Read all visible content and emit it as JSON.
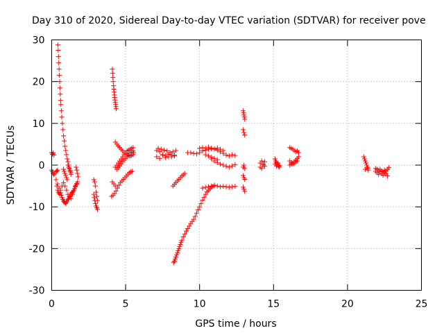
{
  "chart_data": {
    "type": "scatter",
    "title": "Day 310 of 2020, Sidereal Day-to-day VTEC variation (SDTVAR) for receiver pove",
    "xlabel": "GPS time / hours",
    "ylabel": "SDTVAR / TECUs",
    "xlim": [
      0,
      25
    ],
    "ylim": [
      -30,
      30
    ],
    "xticks": [
      "0",
      "5",
      "10",
      "15",
      "20",
      "25"
    ],
    "yticks": [
      "30",
      "20",
      "10",
      "0",
      "-10",
      "-20",
      "-30"
    ],
    "xtick_values": [
      0,
      5,
      10,
      15,
      20,
      25
    ],
    "ytick_values": [
      30,
      20,
      10,
      0,
      -10,
      -20,
      -30
    ],
    "grid": true,
    "marker": "+",
    "color": "#ff0000",
    "series": [
      {
        "name": "SDTVAR",
        "segments": [
          {
            "x": [
              0.0,
              0.05,
              0.1,
              0.15
            ],
            "y": [
              3.0,
              2.6,
              2.9,
              2.4
            ]
          },
          {
            "x": [
              0.0,
              0.05,
              0.1,
              0.15,
              0.2,
              0.3,
              0.35,
              0.4
            ],
            "y": [
              -1.2,
              -1.6,
              -2.0,
              -2.3,
              -2.0,
              -1.6,
              -1.4,
              -1.2
            ]
          },
          {
            "x": [
              0.42,
              0.44,
              0.46,
              0.48,
              0.5,
              0.52,
              0.54,
              0.56,
              0.58,
              0.6,
              0.62,
              0.65,
              0.68,
              0.72,
              0.76,
              0.8,
              0.85,
              0.9,
              0.95,
              1.0,
              1.05,
              1.1,
              1.15,
              1.2,
              1.25,
              1.3
            ],
            "y": [
              28.8,
              27.5,
              26.0,
              24.5,
              23.0,
              21.5,
              20.0,
              18.5,
              17.0,
              15.5,
              14.5,
              13.0,
              11.5,
              10.0,
              8.5,
              7.0,
              5.8,
              4.5,
              3.5,
              2.5,
              1.5,
              0.8,
              0.0,
              -0.8,
              -1.5,
              -2.2
            ]
          },
          {
            "x": [
              0.35,
              0.4,
              0.45,
              0.5,
              0.55,
              0.6,
              0.65,
              0.7,
              0.75,
              0.8,
              0.85,
              0.9,
              0.95,
              1.0,
              1.05,
              1.1,
              1.15,
              1.2,
              1.25,
              1.3,
              1.35,
              1.4,
              1.45,
              1.5,
              1.55,
              1.6,
              1.65,
              1.7,
              1.75
            ],
            "y": [
              -5.0,
              -6.0,
              -6.5,
              -6.8,
              -7.0,
              -6.6,
              -7.2,
              -7.8,
              -8.2,
              -8.6,
              -8.8,
              -9.0,
              -9.2,
              -8.9,
              -8.6,
              -8.2,
              -8.0,
              -7.6,
              -7.4,
              -7.0,
              -6.7,
              -6.5,
              -6.3,
              -6.0,
              -5.6,
              -5.2,
              -4.8,
              -4.4,
              -4.0
            ]
          },
          {
            "x": [
              0.3,
              0.4,
              0.5,
              0.6,
              0.7,
              0.8,
              0.9,
              1.0,
              1.1,
              1.2,
              1.3,
              1.4,
              1.5,
              1.6,
              1.7
            ],
            "y": [
              -3.5,
              -4.5,
              -5.5,
              -6.0,
              -5.0,
              -4.2,
              -5.0,
              -6.0,
              -7.0,
              -7.5,
              -8.0,
              -7.0,
              -6.0,
              -5.0,
              -4.5
            ]
          },
          {
            "x": [
              0.8,
              0.85,
              0.9,
              0.95,
              1.0,
              1.05
            ],
            "y": [
              -1.0,
              -1.5,
              -2.0,
              -2.5,
              -3.0,
              -3.5
            ]
          },
          {
            "x": [
              1.1,
              1.15,
              1.2,
              1.25,
              1.3
            ],
            "y": [
              0.0,
              -0.5,
              -0.9,
              -1.3,
              -1.8
            ]
          },
          {
            "x": [
              1.65,
              1.7,
              1.75,
              1.78
            ],
            "y": [
              -0.5,
              -1.2,
              -2.0,
              -2.8
            ]
          },
          {
            "x": [
              2.85,
              2.9,
              2.95,
              3.0,
              3.05,
              3.1
            ],
            "y": [
              -3.5,
              -4.0,
              -5.0,
              -6.5,
              -7.5,
              -8.5
            ]
          },
          {
            "x": [
              2.85,
              2.88,
              2.92,
              2.96,
              3.0,
              3.05,
              3.1
            ],
            "y": [
              -7.0,
              -7.8,
              -8.5,
              -9.2,
              -9.8,
              -10.2,
              -10.6
            ]
          },
          {
            "x": [
              4.1,
              4.12,
              4.14,
              4.16,
              4.18,
              4.2,
              4.22,
              4.24,
              4.26,
              4.28,
              4.3,
              4.32,
              4.34,
              4.36
            ],
            "y": [
              23.0,
              22.0,
              21.0,
              20.0,
              19.0,
              18.2,
              17.5,
              16.8,
              16.2,
              15.6,
              15.0,
              14.5,
              14.0,
              13.5
            ]
          },
          {
            "x": [
              4.05,
              4.15,
              4.25,
              4.35,
              4.45,
              4.55,
              4.65,
              4.75,
              4.85,
              4.95,
              5.05,
              5.15,
              5.25,
              5.35,
              5.45
            ],
            "y": [
              -7.5,
              -7.2,
              -6.8,
              -6.2,
              -5.5,
              -4.8,
              -4.2,
              -3.8,
              -3.4,
              -3.0,
              -2.6,
              -2.2,
              -1.8,
              -1.6,
              -1.5
            ]
          },
          {
            "x": [
              4.1,
              4.2,
              4.3
            ],
            "y": [
              -4.0,
              -4.5,
              -5.0
            ]
          },
          {
            "x": [
              4.3,
              4.4,
              4.5,
              4.6,
              4.7,
              4.8,
              4.9,
              5.0,
              5.1,
              5.2,
              5.3,
              5.4,
              5.5,
              5.55
            ],
            "y": [
              5.5,
              5.0,
              4.6,
              4.2,
              3.8,
              3.4,
              3.0,
              2.7,
              2.5,
              2.3,
              2.2,
              2.3,
              2.5,
              3.0
            ]
          },
          {
            "x": [
              4.3,
              4.4,
              4.5,
              4.6,
              4.7,
              4.8,
              4.9,
              5.0,
              5.1,
              5.2,
              5.3,
              5.4,
              5.5
            ],
            "y": [
              -0.5,
              0.0,
              0.5,
              1.0,
              1.5,
              2.0,
              2.5,
              3.0,
              3.4,
              3.6,
              3.8,
              4.0,
              4.2
            ]
          },
          {
            "x": [
              4.4,
              4.5,
              4.6,
              4.7,
              4.8,
              4.9,
              5.0,
              5.1,
              5.2,
              5.3,
              5.4,
              5.5
            ],
            "y": [
              -1.0,
              -0.6,
              -0.2,
              0.3,
              0.8,
              1.2,
              1.6,
              2.0,
              2.4,
              2.8,
              3.1,
              3.4
            ]
          },
          {
            "x": [
              7.1,
              7.2,
              7.3,
              7.4,
              7.5,
              7.6,
              7.7,
              7.8,
              7.9,
              8.0,
              8.1,
              8.2,
              8.3,
              8.4
            ],
            "y": [
              3.5,
              4.0,
              3.2,
              3.8,
              2.5,
              3.6,
              2.2,
              3.4,
              2.0,
              3.0,
              2.4,
              3.2,
              2.2,
              3.5
            ]
          },
          {
            "x": [
              7.1,
              7.3,
              7.5,
              7.7,
              7.9,
              8.1,
              8.3
            ],
            "y": [
              2.0,
              1.6,
              2.4,
              1.8,
              2.6,
              2.0,
              2.4
            ]
          },
          {
            "x": [
              8.2,
              8.3,
              8.4,
              8.5,
              8.6,
              8.7,
              8.8,
              8.9,
              9.0
            ],
            "y": [
              -5.0,
              -4.6,
              -4.2,
              -3.8,
              -3.4,
              -3.0,
              -2.6,
              -2.3,
              -2.0
            ]
          },
          {
            "x": [
              8.25,
              8.3,
              8.35,
              8.4,
              8.45,
              8.5,
              8.55,
              8.6,
              8.65,
              8.7,
              8.75,
              8.8,
              8.9,
              9.0,
              9.1,
              9.2,
              9.3,
              9.4,
              9.5,
              9.6,
              9.7,
              9.8,
              9.9,
              10.0,
              10.1,
              10.2,
              10.3,
              10.4,
              10.5,
              10.6,
              10.7,
              10.8,
              10.9,
              11.0
            ],
            "y": [
              -23.3,
              -23.0,
              -22.5,
              -22.0,
              -21.5,
              -21.0,
              -20.5,
              -20.0,
              -19.5,
              -19.0,
              -18.5,
              -18.0,
              -17.2,
              -16.5,
              -15.8,
              -15.2,
              -14.6,
              -14.0,
              -13.5,
              -13.0,
              -12.3,
              -11.5,
              -10.7,
              -10.0,
              -9.2,
              -8.4,
              -7.7,
              -7.0,
              -6.4,
              -6.0,
              -5.6,
              -5.3,
              -5.1,
              -5.0
            ]
          },
          {
            "x": [
              10.2,
              10.4,
              10.6,
              10.8,
              11.0,
              11.2,
              11.4,
              11.6,
              11.8,
              12.0,
              12.2,
              12.4
            ],
            "y": [
              -5.5,
              -5.3,
              -5.2,
              -5.0,
              -4.8,
              -5.0,
              -5.2,
              -5.1,
              -5.2,
              -5.3,
              -5.2,
              -5.1
            ]
          },
          {
            "x": [
              9.2,
              9.4,
              9.6,
              9.8,
              10.0,
              10.2,
              10.4,
              10.6,
              10.8,
              11.0,
              11.2,
              11.4,
              11.6,
              11.8,
              12.0,
              12.2,
              12.4
            ],
            "y": [
              3.0,
              3.0,
              2.8,
              2.7,
              3.0,
              3.4,
              3.6,
              3.8,
              3.9,
              3.8,
              3.6,
              3.2,
              2.8,
              2.4,
              2.2,
              2.5,
              2.3
            ]
          },
          {
            "x": [
              10.0,
              10.2,
              10.4,
              10.6,
              10.8,
              11.0,
              11.2,
              11.4,
              11.6
            ],
            "y": [
              4.0,
              4.2,
              4.0,
              4.3,
              4.1,
              3.9,
              4.1,
              3.8,
              3.5
            ]
          },
          {
            "x": [
              10.8,
              11.0,
              11.2,
              11.4,
              11.6,
              11.8,
              12.0,
              12.2,
              12.4
            ],
            "y": [
              1.5,
              1.0,
              0.6,
              0.2,
              0.0,
              -0.3,
              -0.5,
              -0.2,
              0.1
            ]
          },
          {
            "x": [
              10.4,
              10.6,
              10.8,
              11.0,
              11.2
            ],
            "y": [
              2.5,
              2.2,
              1.9,
              1.6,
              1.3
            ]
          },
          {
            "x": [
              12.95,
              12.98,
              13.0,
              13.02,
              13.05
            ],
            "y": [
              13.0,
              12.5,
              12.0,
              11.5,
              11.0
            ]
          },
          {
            "x": [
              12.95,
              13.0,
              13.05
            ],
            "y": [
              8.5,
              7.8,
              7.2
            ]
          },
          {
            "x": [
              12.95,
              13.0,
              13.05
            ],
            "y": [
              -0.5,
              0.0,
              -0.8
            ]
          },
          {
            "x": [
              12.95,
              13.0,
              13.05
            ],
            "y": [
              -2.5,
              -3.0,
              -3.4
            ]
          },
          {
            "x": [
              12.95,
              13.0,
              13.05
            ],
            "y": [
              -5.3,
              -5.8,
              -6.3
            ]
          },
          {
            "x": [
              14.1,
              14.2,
              14.3,
              14.4,
              14.1,
              14.2,
              14.3,
              14.4
            ],
            "y": [
              0.5,
              1.0,
              0.2,
              0.8,
              -0.5,
              -0.8,
              0.0,
              -0.3
            ]
          },
          {
            "x": [
              15.1,
              15.15,
              15.2,
              15.25,
              15.3,
              15.35,
              15.4,
              15.1,
              15.2,
              15.3,
              15.4
            ],
            "y": [
              1.5,
              1.0,
              0.6,
              0.2,
              0.0,
              -0.3,
              -0.5,
              0.3,
              -0.2,
              0.5,
              -0.1
            ]
          },
          {
            "x": [
              16.1,
              16.2,
              16.3,
              16.4,
              16.5,
              16.6,
              16.7
            ],
            "y": [
              4.2,
              4.0,
              3.8,
              3.5,
              3.2,
              3.4,
              3.0
            ]
          },
          {
            "x": [
              16.1,
              16.2,
              16.3,
              16.4,
              16.5,
              16.6,
              16.7
            ],
            "y": [
              0.0,
              0.2,
              0.5,
              0.8,
              1.2,
              1.6,
              2.0
            ]
          },
          {
            "x": [
              16.1,
              16.2,
              16.3,
              16.4,
              16.5,
              16.6
            ],
            "y": [
              1.0,
              0.6,
              0.3,
              0.5,
              0.8,
              1.0
            ]
          },
          {
            "x": [
              21.1,
              21.15,
              21.2,
              21.25,
              21.3,
              21.35,
              21.4
            ],
            "y": [
              2.0,
              1.5,
              1.0,
              0.5,
              0.0,
              -0.5,
              -0.8
            ]
          },
          {
            "x": [
              21.2,
              21.3,
              21.4
            ],
            "y": [
              -1.0,
              -0.5,
              -1.2
            ]
          },
          {
            "x": [
              21.9,
              22.0,
              22.1,
              22.2,
              22.3,
              22.4,
              22.5,
              22.6,
              22.7,
              22.8
            ],
            "y": [
              -1.5,
              -1.8,
              -2.2,
              -1.6,
              -2.0,
              -2.4,
              -1.8,
              -1.4,
              -1.0,
              -0.6
            ]
          },
          {
            "x": [
              21.9,
              22.0,
              22.1,
              22.2,
              22.3,
              22.4,
              22.5,
              22.6,
              22.7
            ],
            "y": [
              -0.8,
              -1.0,
              -1.2,
              -1.0,
              -1.4,
              -1.6,
              -1.2,
              -2.0,
              -2.6
            ]
          }
        ]
      }
    ]
  }
}
